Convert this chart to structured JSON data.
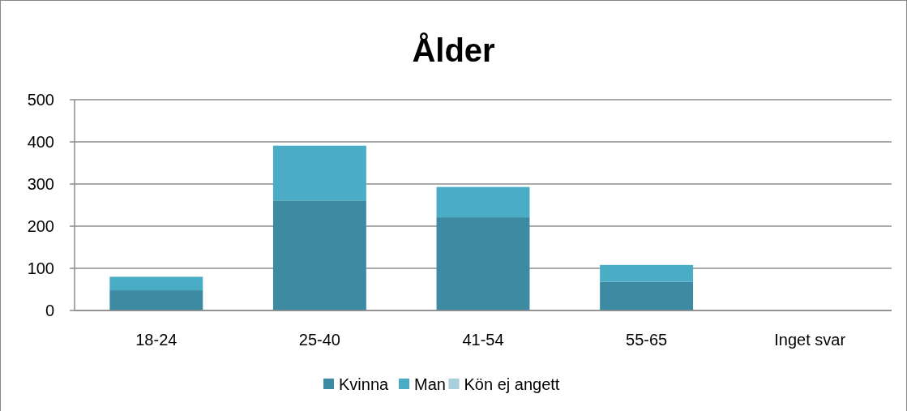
{
  "chart_data": {
    "type": "bar",
    "title": "Ålder",
    "categories": [
      "18-24",
      "25-40",
      "41-54",
      "55-65",
      "Inget svar"
    ],
    "stacked": true,
    "series": [
      {
        "name": "Kvinna",
        "color": "#3d8ba3",
        "values": [
          48,
          261,
          221,
          68,
          null
        ]
      },
      {
        "name": "Man",
        "color": "#4bacc6",
        "values": [
          32,
          130,
          72,
          40,
          0
        ]
      },
      {
        "name": "Kön ej angett",
        "color": "#a5d0dc",
        "values": [
          0,
          0,
          0,
          0,
          0
        ]
      }
    ],
    "ylim": [
      0,
      500
    ],
    "yticks": [
      0,
      100,
      200,
      300,
      400,
      500
    ],
    "grid": "y",
    "legend": "bottom"
  }
}
